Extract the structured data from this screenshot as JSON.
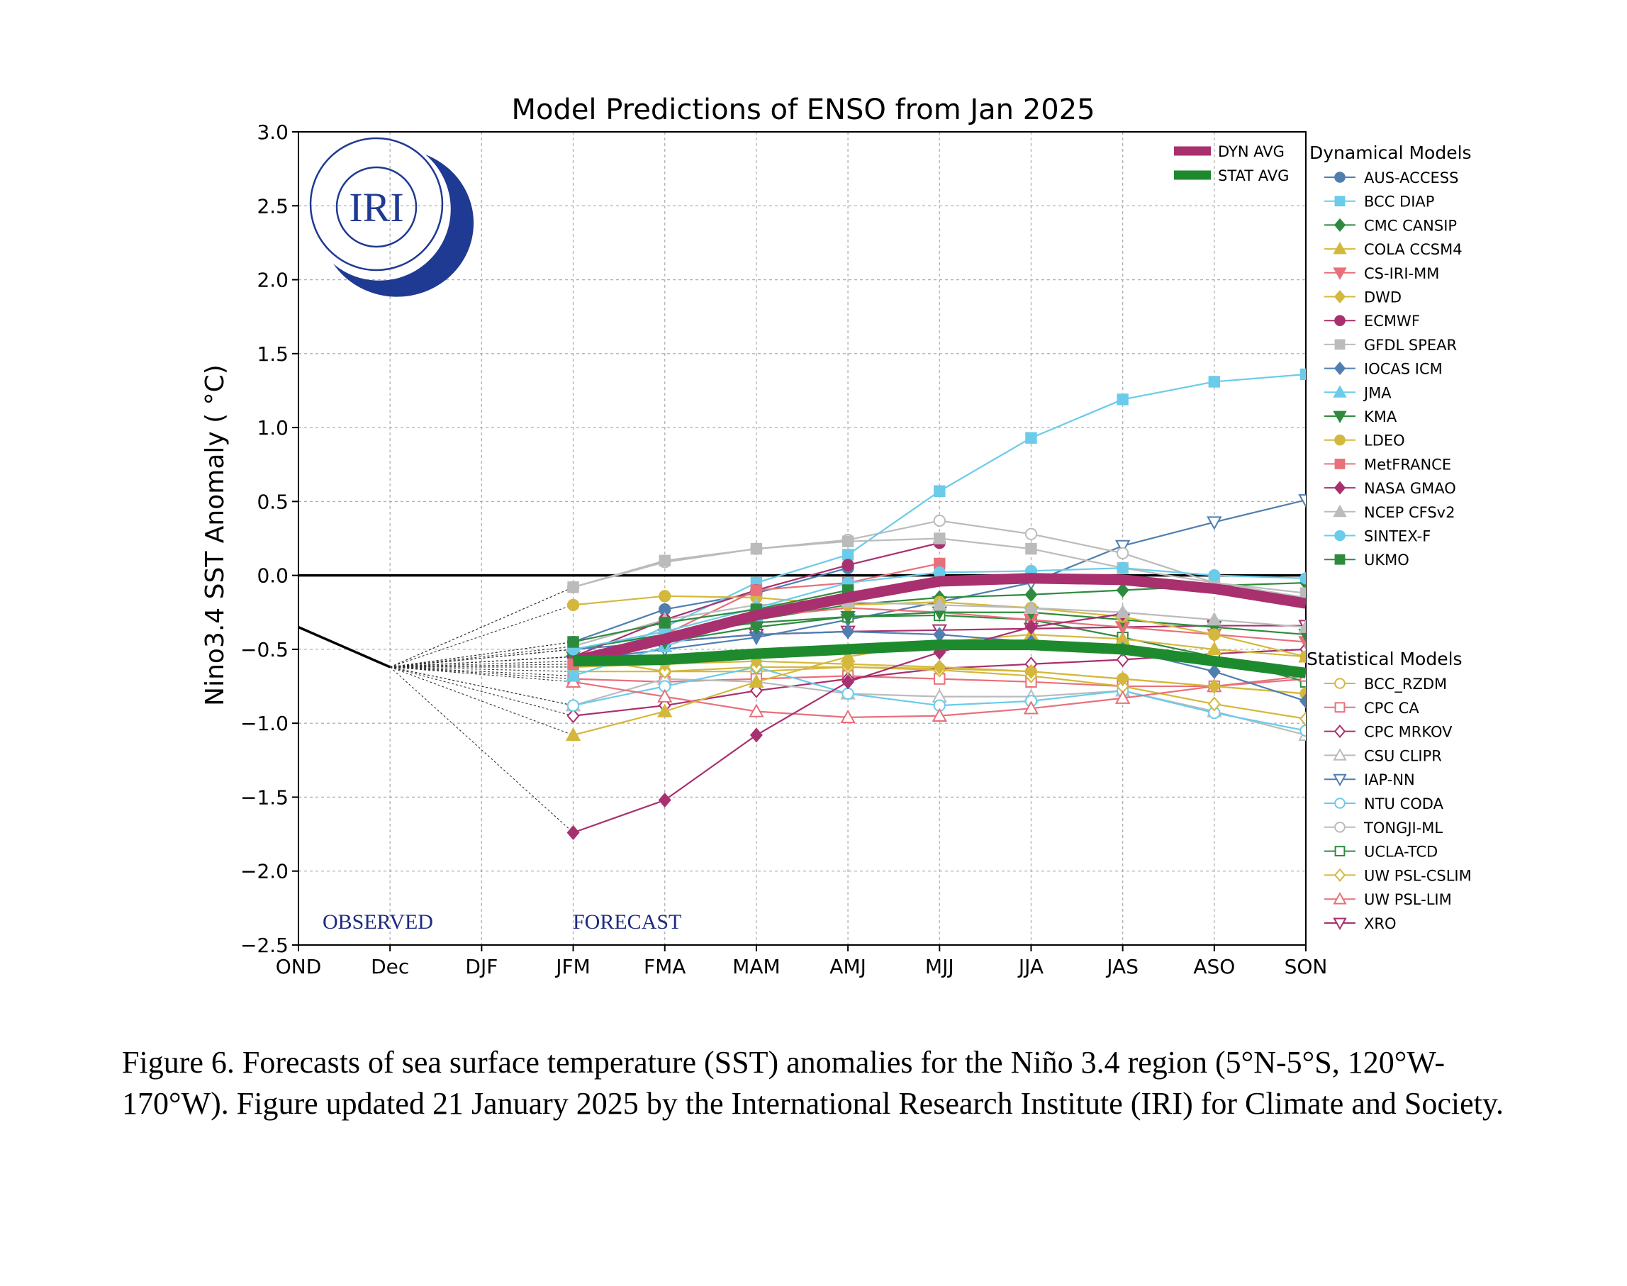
{
  "caption": "Figure 6. Forecasts of sea surface temperature (SST) anomalies for the Niño 3.4 region (5°N-5°S, 120°W-170°W). Figure updated 21 January 2025 by the International Research Institute (IRI) for Climate and Society.",
  "logo_text": "IRI",
  "annotations": {
    "observed": "OBSERVED",
    "forecast": "FORECAST"
  },
  "legend": {
    "dynamical_title": "Dynamical Models",
    "statistical_title": "Statistical Models",
    "averages": [
      {
        "name": "DYN AVG",
        "color": "#A8306E"
      },
      {
        "name": "STAT AVG",
        "color": "#1E8A2E"
      }
    ]
  },
  "chart_data": {
    "type": "line",
    "title": "Model Predictions of ENSO from Jan 2025",
    "ylabel": "Nino3.4 SST Anomaly ( °C)",
    "xlabel": "",
    "categories": [
      "OND",
      "Dec",
      "DJF",
      "JFM",
      "FMA",
      "MAM",
      "AMJ",
      "MJJ",
      "JJA",
      "JAS",
      "ASO",
      "SON"
    ],
    "ylim": [
      -2.5,
      3.0
    ],
    "yticks": [
      "3.0",
      "2.5",
      "2.0",
      "1.5",
      "1.0",
      "0.5",
      "0.0",
      "−0.5",
      "−1.0",
      "−1.5",
      "−2.0",
      "−2.5"
    ],
    "grid": true,
    "observed": {
      "x": [
        "OND",
        "Dec"
      ],
      "values": [
        -0.35,
        -0.62
      ],
      "color": "#000000"
    },
    "dynamical_series": [
      {
        "name": "AUS-ACCESS",
        "color": "#4F7EB0",
        "marker": "circle",
        "fill": true,
        "values": [
          null,
          null,
          null,
          -0.45,
          -0.23,
          -0.12,
          0.05,
          null,
          null,
          null,
          null,
          null
        ]
      },
      {
        "name": "BCC DIAP",
        "color": "#6ACBEA",
        "marker": "square",
        "fill": true,
        "values": [
          null,
          null,
          null,
          -0.62,
          -0.35,
          -0.05,
          0.14,
          0.57,
          0.93,
          1.19,
          1.31,
          1.36
        ]
      },
      {
        "name": "CMC CANSIP",
        "color": "#2E8B3E",
        "marker": "diamond",
        "fill": true,
        "values": [
          null,
          null,
          null,
          -0.5,
          -0.4,
          -0.3,
          -0.2,
          -0.15,
          -0.13,
          -0.1,
          -0.07,
          -0.05
        ]
      },
      {
        "name": "COLA CCSM4",
        "color": "#D4B83C",
        "marker": "triangle",
        "fill": true,
        "values": [
          null,
          null,
          null,
          -1.08,
          -0.92,
          -0.72,
          -0.55,
          -0.45,
          -0.4,
          -0.43,
          -0.5,
          -0.55
        ]
      },
      {
        "name": "CS-IRI-MM",
        "color": "#E8707A",
        "marker": "tridown",
        "fill": true,
        "values": [
          null,
          null,
          null,
          -0.55,
          -0.4,
          -0.28,
          -0.22,
          -0.25,
          -0.3,
          -0.35,
          -0.4,
          -0.45
        ]
      },
      {
        "name": "DWD",
        "color": "#D4B83C",
        "marker": "diamond",
        "fill": true,
        "values": [
          null,
          null,
          null,
          -0.62,
          -0.6,
          -0.58,
          -0.6,
          -0.62,
          -0.65,
          -0.7,
          -0.75,
          -0.8
        ]
      },
      {
        "name": "ECMWF",
        "color": "#A8306E",
        "marker": "circle",
        "fill": true,
        "values": [
          null,
          null,
          null,
          -0.55,
          -0.3,
          -0.1,
          0.07,
          0.22,
          null,
          null,
          null,
          null
        ]
      },
      {
        "name": "GFDL SPEAR",
        "color": "#BBBBBB",
        "marker": "square",
        "fill": true,
        "values": [
          null,
          null,
          null,
          -0.08,
          0.1,
          0.18,
          0.23,
          0.25,
          0.18,
          0.05,
          -0.05,
          -0.12
        ]
      },
      {
        "name": "IOCAS ICM",
        "color": "#4F7EB0",
        "marker": "diamond",
        "fill": true,
        "values": [
          null,
          null,
          null,
          -0.5,
          -0.45,
          -0.4,
          -0.38,
          -0.4,
          -0.45,
          -0.5,
          -0.65,
          -0.85
        ]
      },
      {
        "name": "JMA",
        "color": "#6ACBEA",
        "marker": "triangle",
        "fill": true,
        "values": [
          null,
          null,
          null,
          -0.68,
          -0.48,
          -0.28,
          -0.12,
          null,
          null,
          null,
          null,
          null
        ]
      },
      {
        "name": "KMA",
        "color": "#2E8B3E",
        "marker": "tridown",
        "fill": true,
        "values": [
          null,
          null,
          null,
          -0.55,
          -0.45,
          -0.35,
          -0.28,
          -0.25,
          -0.25,
          -0.3,
          -0.35,
          -0.4
        ]
      },
      {
        "name": "LDEO",
        "color": "#D4B83C",
        "marker": "circle",
        "fill": true,
        "values": [
          null,
          null,
          null,
          -0.2,
          -0.14,
          -0.15,
          -0.2,
          -0.18,
          -0.22,
          -0.28,
          -0.4,
          -0.55
        ]
      },
      {
        "name": "MetFRANCE",
        "color": "#E8707A",
        "marker": "square",
        "fill": true,
        "values": [
          null,
          null,
          null,
          -0.6,
          -0.4,
          -0.1,
          -0.05,
          0.08,
          null,
          null,
          null,
          null
        ]
      },
      {
        "name": "NASA GMAO",
        "color": "#A8306E",
        "marker": "diamond",
        "fill": true,
        "values": [
          null,
          null,
          null,
          -1.74,
          -1.52,
          -1.08,
          -0.72,
          -0.52,
          -0.35,
          -0.26,
          null,
          null
        ]
      },
      {
        "name": "NCEP CFSv2",
        "color": "#BBBBBB",
        "marker": "triangle",
        "fill": true,
        "values": [
          null,
          null,
          null,
          -0.48,
          -0.3,
          -0.2,
          -0.18,
          -0.2,
          -0.22,
          -0.25,
          -0.3,
          -0.35
        ]
      },
      {
        "name": "SINTEX-F",
        "color": "#6ACBEA",
        "marker": "circle",
        "fill": true,
        "values": [
          null,
          null,
          null,
          -0.5,
          -0.38,
          -0.22,
          -0.05,
          0.02,
          0.03,
          0.05,
          0.0,
          -0.02
        ]
      },
      {
        "name": "UKMO",
        "color": "#2E8B3E",
        "marker": "square",
        "fill": true,
        "values": [
          null,
          null,
          null,
          -0.45,
          -0.32,
          -0.23,
          -0.1,
          null,
          null,
          null,
          null,
          null
        ]
      }
    ],
    "statistical_series": [
      {
        "name": "BCC_RZDM",
        "color": "#D4B83C",
        "marker": "circle",
        "fill": false,
        "values": [
          null,
          null,
          null,
          -0.55,
          -0.65,
          -0.65,
          -0.62,
          -0.63,
          -0.65,
          -0.7,
          -0.75,
          -0.8
        ]
      },
      {
        "name": "CPC CA",
        "color": "#E8707A",
        "marker": "square",
        "fill": false,
        "values": [
          null,
          null,
          null,
          -0.7,
          -0.72,
          -0.7,
          -0.68,
          -0.7,
          -0.72,
          -0.75,
          -0.75,
          -0.7
        ]
      },
      {
        "name": "CPC MRKOV",
        "color": "#A8306E",
        "marker": "diamond",
        "fill": false,
        "values": [
          null,
          null,
          null,
          -0.95,
          -0.88,
          -0.78,
          -0.7,
          -0.63,
          -0.6,
          -0.57,
          -0.53,
          -0.5
        ]
      },
      {
        "name": "CSU CLIPR",
        "color": "#BBBBBB",
        "marker": "triangle",
        "fill": false,
        "values": [
          null,
          null,
          null,
          -0.88,
          -0.7,
          -0.72,
          -0.8,
          -0.82,
          -0.82,
          -0.78,
          -0.92,
          -1.08
        ]
      },
      {
        "name": "IAP-NN",
        "color": "#4F7EB0",
        "marker": "tridown",
        "fill": false,
        "values": [
          null,
          null,
          null,
          -0.58,
          -0.5,
          -0.42,
          -0.3,
          -0.18,
          -0.05,
          0.2,
          0.36,
          0.51
        ]
      },
      {
        "name": "NTU CODA",
        "color": "#6ACBEA",
        "marker": "circle",
        "fill": false,
        "values": [
          null,
          null,
          null,
          -0.88,
          -0.75,
          -0.62,
          -0.8,
          -0.88,
          -0.85,
          -0.78,
          -0.93,
          -1.05
        ]
      },
      {
        "name": "TONGJI-ML",
        "color": "#BBBBBB",
        "marker": "circle",
        "fill": false,
        "values": [
          null,
          null,
          null,
          -0.08,
          0.09,
          0.18,
          0.24,
          0.37,
          0.28,
          0.15,
          -0.05,
          -0.15
        ]
      },
      {
        "name": "UCLA-TCD",
        "color": "#2E8B3E",
        "marker": "square",
        "fill": false,
        "values": [
          null,
          null,
          null,
          -0.5,
          -0.4,
          -0.32,
          -0.28,
          -0.27,
          -0.3,
          -0.42,
          -0.55,
          -0.72
        ]
      },
      {
        "name": "UW PSL-CSLIM",
        "color": "#D4B83C",
        "marker": "diamond",
        "fill": false,
        "values": [
          null,
          null,
          null,
          -0.65,
          -0.65,
          -0.62,
          -0.62,
          -0.64,
          -0.68,
          -0.75,
          -0.87,
          -0.97
        ]
      },
      {
        "name": "UW PSL-LIM",
        "color": "#E8707A",
        "marker": "triangle",
        "fill": false,
        "values": [
          null,
          null,
          null,
          -0.72,
          -0.82,
          -0.92,
          -0.96,
          -0.95,
          -0.9,
          -0.83,
          -0.75,
          -0.68
        ]
      },
      {
        "name": "XRO",
        "color": "#A8306E",
        "marker": "tridown",
        "fill": false,
        "values": [
          null,
          null,
          null,
          -0.55,
          -0.45,
          -0.4,
          -0.38,
          -0.37,
          -0.36,
          -0.35,
          -0.34,
          -0.34
        ]
      }
    ],
    "averages": [
      {
        "name": "DYN AVG",
        "color": "#A8306E",
        "values": [
          null,
          null,
          null,
          -0.58,
          -0.43,
          -0.27,
          -0.15,
          -0.04,
          -0.02,
          -0.03,
          -0.09,
          -0.19
        ]
      },
      {
        "name": "STAT AVG",
        "color": "#1E8A2E",
        "values": [
          null,
          null,
          null,
          -0.58,
          -0.57,
          -0.53,
          -0.5,
          -0.47,
          -0.47,
          -0.5,
          -0.58,
          -0.66
        ]
      }
    ]
  }
}
